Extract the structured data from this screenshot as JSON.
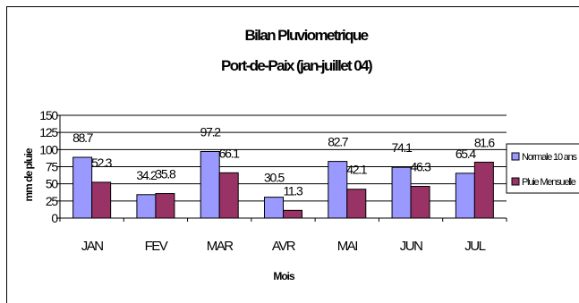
{
  "chart_data": {
    "type": "bar",
    "title": [
      "Bilan Pluviometrique",
      "Port-de-Paix (jan-juillet 04)"
    ],
    "xlabel": "Mois",
    "ylabel": "mm de pluie",
    "categories": [
      "JAN",
      "FEV",
      "MAR",
      "AVR",
      "MAI",
      "JUN",
      "JUL"
    ],
    "yticks": [
      "0",
      "25",
      "50",
      "75",
      "100",
      "125",
      "150"
    ],
    "ylim": [
      0,
      150
    ],
    "grid": true,
    "legend_position": "right",
    "series": [
      {
        "name": "Normale 10 ans",
        "color": "#9999ff",
        "values": [
          88.7,
          34.2,
          97.2,
          30.5,
          82.7,
          74.1,
          65.4
        ],
        "labels": [
          "88.7",
          "34.2",
          "97.2",
          "30.5",
          "82.7",
          "74.1",
          "65.4"
        ]
      },
      {
        "name": "Pluie Mensuelle",
        "color": "#993366",
        "values": [
          52.3,
          35.8,
          66.1,
          11.3,
          42.1,
          46.3,
          81.6
        ],
        "labels": [
          "52.3",
          "35.8",
          "66.1",
          "11.3",
          "42.1",
          "46.3",
          "81.6"
        ]
      }
    ]
  }
}
